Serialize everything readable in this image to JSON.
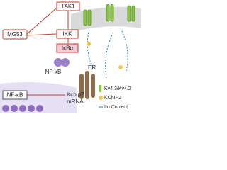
{
  "nodes": [
    {
      "label": "TAK1"
    },
    {
      "label": "MG53"
    },
    {
      "label": "IKK"
    },
    {
      "label": "IκBα"
    },
    {
      "label": "NF-κB"
    },
    {
      "label": "ER"
    },
    {
      "label": "NF-κB"
    },
    {
      "label": "Kchip2"
    },
    {
      "label": "mRNA"
    }
  ],
  "legend": [
    {
      "label": "Kv4.3/Kv4.2"
    },
    {
      "label": "KChIP2"
    },
    {
      "label": "Ito Current"
    }
  ]
}
